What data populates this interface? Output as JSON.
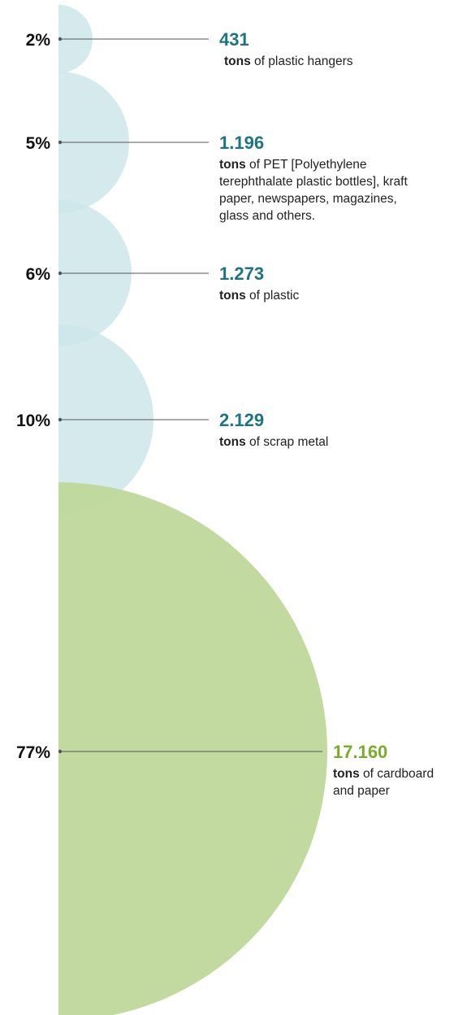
{
  "chart_data": {
    "type": "bubble",
    "unit_word": "tons",
    "colors": {
      "small": "#cde6ea",
      "large": "#bfd89a",
      "small_value_text": "#1d7583",
      "large_value_text": "#7aac2c"
    },
    "items": [
      {
        "percent_label": "2%",
        "percent": 2,
        "value_label": "431",
        "value": 431,
        "desc_lines": [
          "of plastic hangers"
        ]
      },
      {
        "percent_label": "5%",
        "percent": 5,
        "value_label": "1.196",
        "value": 1196,
        "desc_lines": [
          "of PET [Polyethylene",
          "terephthalate plastic bottles], kraft",
          "paper, newspapers, magazines,",
          "glass and others."
        ]
      },
      {
        "percent_label": "6%",
        "percent": 6,
        "value_label": "1.273",
        "value": 1273,
        "desc_lines": [
          "of plastic"
        ]
      },
      {
        "percent_label": "10%",
        "percent": 10,
        "value_label": "2.129",
        "value": 2129,
        "desc_lines": [
          "of scrap metal"
        ]
      },
      {
        "percent_label": "77%",
        "percent": 77,
        "value_label": "17.160",
        "value": 17160,
        "desc_lines": [
          "of cardboard",
          "and paper"
        ]
      }
    ]
  }
}
